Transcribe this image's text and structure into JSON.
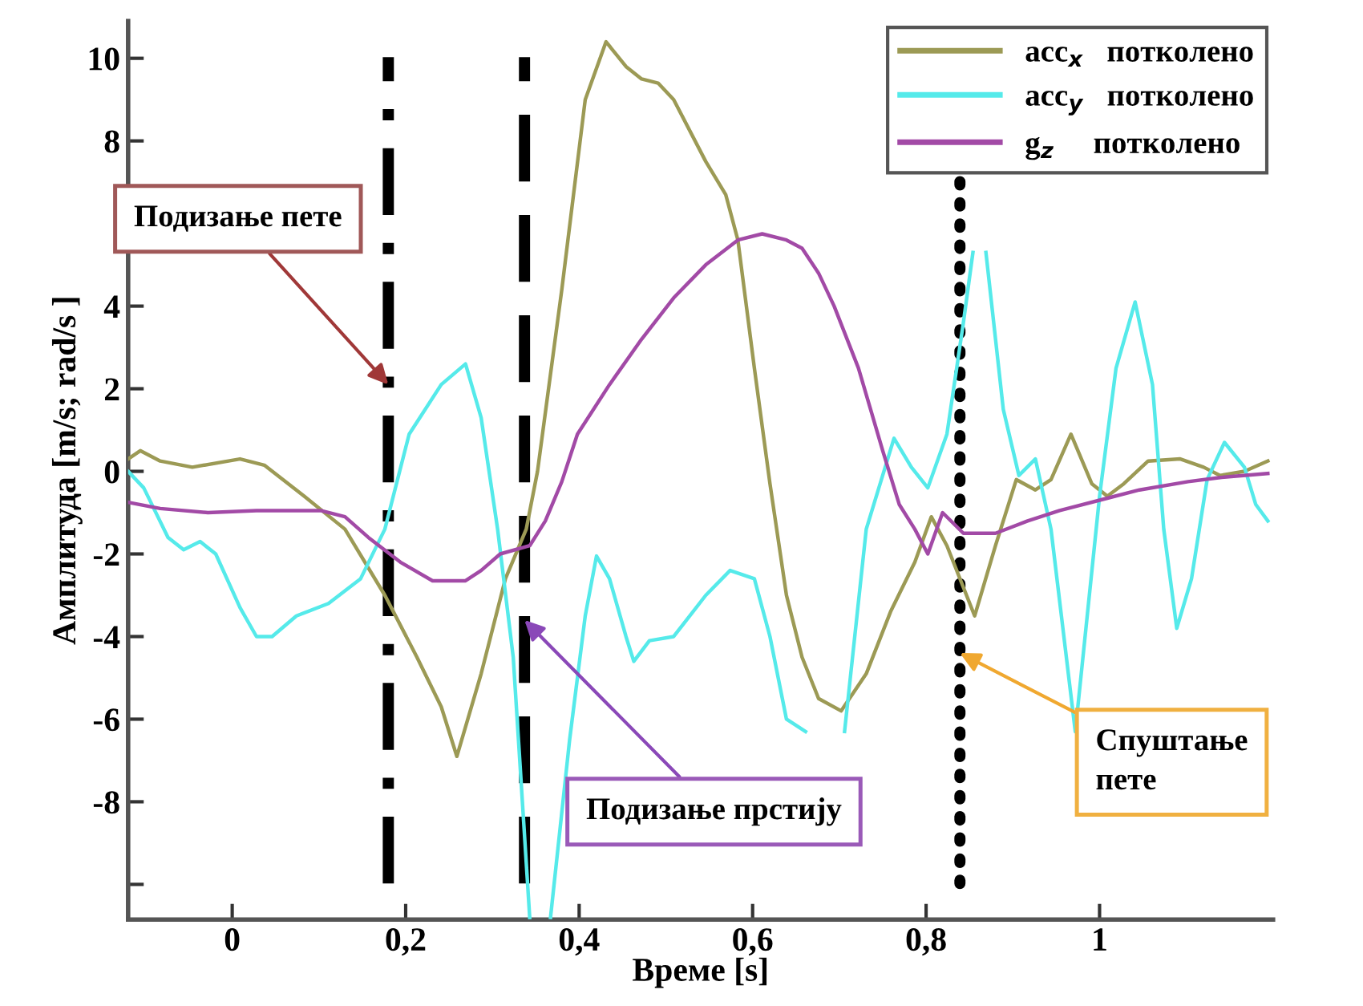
{
  "chart_data": {
    "type": "line",
    "xlabel": "Време [s]",
    "ylabel": "Амплитуда [m/s; rad/s ]",
    "xlim": [
      -0.12,
      1.2
    ],
    "ylim": [
      -10.85,
      10.9
    ],
    "xticks": [
      {
        "value": 0,
        "label": "0"
      },
      {
        "value": 0.2,
        "label": "0,2"
      },
      {
        "value": 0.4,
        "label": "0,4"
      },
      {
        "value": 0.6,
        "label": "0,6"
      },
      {
        "value": 0.8,
        "label": "0,8"
      },
      {
        "value": 1,
        "label": "1"
      }
    ],
    "yticks": [
      {
        "value": -10,
        "label": null
      },
      -8,
      -6,
      -4,
      -2,
      0,
      2,
      4,
      {
        "value": 6,
        "label": null
      },
      8,
      10
    ],
    "grid": false,
    "legend": "top right",
    "line_style": "solid",
    "marker": "none",
    "series": [
      {
        "name": "acc$_{x}$   потколено",
        "color": "#9c9a55",
        "x": [
          -0.12,
          -0.106,
          -0.083,
          -0.046,
          0.009,
          0.037,
          0.083,
          0.13,
          0.176,
          0.213,
          0.241,
          0.259,
          0.287,
          0.315,
          0.339,
          0.352,
          0.38,
          0.407,
          0.431,
          0.454,
          0.472,
          0.491,
          0.509,
          0.546,
          0.569,
          0.583,
          0.602,
          0.62,
          0.639,
          0.657,
          0.676,
          0.702,
          0.731,
          0.759,
          0.787,
          0.806,
          0.824,
          0.856,
          0.88,
          0.904,
          0.926,
          0.944,
          0.967,
          0.991,
          1.009,
          1.028,
          1.056,
          1.093,
          1.12,
          1.139,
          1.167,
          1.194
        ],
        "values": [
          0.3,
          0.5,
          0.25,
          0.1,
          0.3,
          0.15,
          -0.6,
          -1.4,
          -3.0,
          -4.5,
          -5.7,
          -6.9,
          -4.9,
          -2.6,
          -1.4,
          0,
          4.4,
          9.0,
          10.4,
          9.8,
          9.5,
          9.4,
          9.0,
          7.5,
          6.7,
          5.6,
          2.5,
          -0.3,
          -3.0,
          -4.5,
          -5.5,
          -5.8,
          -4.9,
          -3.4,
          -2.2,
          -1.1,
          -1.8,
          -3.5,
          -1.8,
          -0.2,
          -0.45,
          -0.2,
          0.9,
          -0.3,
          -0.6,
          -0.3,
          0.25,
          0.3,
          0.1,
          -0.1,
          0,
          0.25
        ]
      },
      {
        "name": "acc$_{y}$   потколено",
        "color": "#55eaea",
        "x": [
          -0.12,
          -0.102,
          -0.074,
          -0.056,
          -0.037,
          -0.019,
          0.009,
          0.028,
          0.046,
          0.074,
          0.111,
          0.148,
          0.176,
          0.204,
          0.241,
          0.269,
          0.287,
          0.306,
          0.324,
          0.343,
          0.355,
          0.367,
          0.389,
          0.407,
          0.42,
          0.435,
          0.454,
          0.463,
          0.481,
          0.509,
          0.546,
          0.574,
          0.602,
          0.62,
          0.639,
          0.661,
          0.685,
          0.706,
          0.731,
          0.763,
          0.783,
          0.802,
          0.824,
          0.843,
          0.854,
          0.86,
          0.869,
          0.889,
          0.907,
          0.926,
          0.944,
          0.972,
          1.0,
          1.019,
          1.041,
          1.061,
          1.074,
          1.089,
          1.106,
          1.124,
          1.144,
          1.167,
          1.18,
          1.194
        ],
        "values": [
          0,
          -0.4,
          -1.6,
          -1.9,
          -1.7,
          -2.0,
          -3.3,
          -4.0,
          -4.0,
          -3.5,
          -3.2,
          -2.6,
          -1.4,
          0.9,
          2.1,
          2.6,
          1.3,
          -1.4,
          -4.5,
          -10.8,
          null,
          -10.8,
          -6.5,
          -3.5,
          -2.05,
          -2.6,
          -4.0,
          -4.6,
          -4.1,
          -4.0,
          -3.0,
          -2.4,
          -2.6,
          -4.0,
          -6.0,
          -6.3,
          null,
          -6.3,
          -1.4,
          0.8,
          0.1,
          -0.4,
          0.9,
          3.6,
          5.3,
          null,
          5.3,
          1.5,
          -0.1,
          0.3,
          -1.4,
          -6.3,
          -0.6,
          2.5,
          4.1,
          2.1,
          -1.4,
          -3.8,
          -2.6,
          -0.2,
          0.7,
          0.1,
          -0.8,
          -1.2
        ]
      },
      {
        "name": "g$_{z}$     потколено",
        "color": "#a24aa6",
        "x": [
          -0.12,
          -0.083,
          -0.028,
          0.028,
          0.102,
          0.13,
          0.157,
          0.194,
          0.231,
          0.269,
          0.287,
          0.309,
          0.343,
          0.361,
          0.38,
          0.398,
          0.435,
          0.472,
          0.509,
          0.546,
          0.583,
          0.611,
          0.639,
          0.657,
          0.676,
          0.694,
          0.722,
          0.75,
          0.769,
          0.787,
          0.802,
          0.819,
          0.843,
          0.88,
          0.917,
          0.954,
          1.009,
          1.046,
          1.102,
          1.139,
          1.194
        ],
        "values": [
          -0.75,
          -0.9,
          -1.0,
          -0.95,
          -0.95,
          -1.1,
          -1.6,
          -2.2,
          -2.65,
          -2.65,
          -2.4,
          -2.0,
          -1.8,
          -1.2,
          -0.25,
          0.9,
          2.1,
          3.2,
          4.2,
          5.0,
          5.6,
          5.75,
          5.6,
          5.4,
          4.8,
          4.0,
          2.5,
          0.5,
          -0.8,
          -1.4,
          -2.0,
          -1.0,
          -1.5,
          -1.5,
          -1.2,
          -0.95,
          -0.65,
          -0.45,
          -0.25,
          -0.15,
          -0.05
        ]
      }
    ],
    "ref_lines": [
      {
        "axis": "x",
        "value": 0.18,
        "color": "#000000",
        "line_style": "dashdot"
      },
      {
        "axis": "x",
        "value": 0.337,
        "color": "#000000",
        "line_style": "dashed"
      },
      {
        "axis": "x",
        "value": 0.839,
        "color": "#000000",
        "line_style": "dotted"
      }
    ],
    "annotations": [
      {
        "text": "Подизање пете",
        "x": 0.18,
        "y": 2.1
      },
      {
        "text": "Подизање прстију",
        "x": 0.337,
        "y": -3.6
      },
      {
        "text": "Спуштање\nпете",
        "x": 0.839,
        "y": -4.4
      }
    ]
  }
}
